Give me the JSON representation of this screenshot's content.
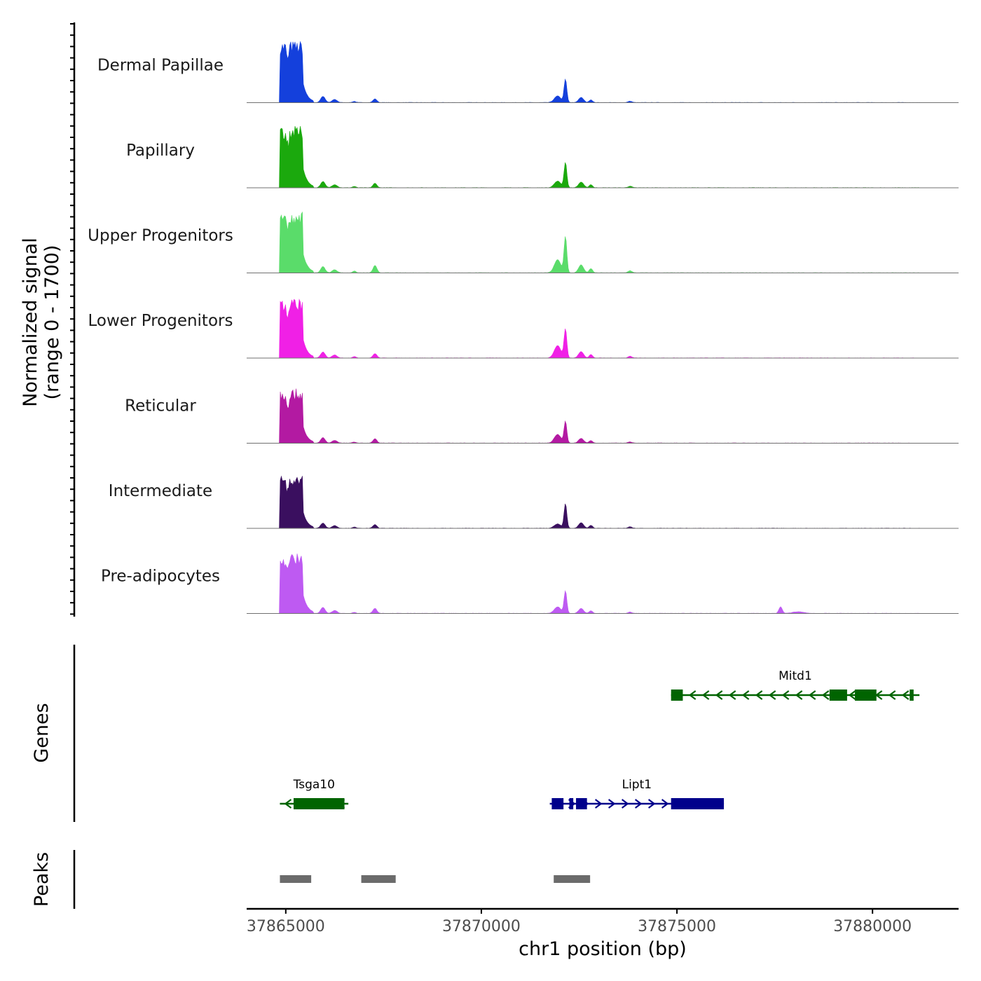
{
  "chart_data": {
    "type": "area",
    "title": "",
    "ylabel_line1": "Normalized signal",
    "ylabel_line2": "(range 0 - 1700)",
    "xlabel": "chr1 position (bp)",
    "xlim": [
      37864000,
      37882200
    ],
    "ylim": [
      0,
      1700
    ],
    "x_ticks": [
      37865000,
      37870000,
      37875000,
      37880000
    ],
    "x_tick_labels": [
      "37865000",
      "37870000",
      "37875000",
      "37880000"
    ],
    "genes_label": "Genes",
    "peaks_label": "Peaks",
    "colors": {
      "Dermal Papillae": "#1440DC",
      "Papillary": "#1BA90D",
      "Upper Progenitors": "#5ADC6A",
      "Lower Progenitors": "#F020E6",
      "Reticular": "#B31AA2",
      "Intermediate": "#3A0F5F",
      "Pre-adipocytes": "#BE5AF2",
      "gene_minus_strand": "#006400",
      "gene_plus_strand": "#00008B",
      "peak": "#6B6B6B"
    },
    "series": [
      {
        "name": "Dermal Papillae",
        "scale": 1.0,
        "peak_main": 1700,
        "peak_mid": 640,
        "peak_mid_side": 180,
        "peak_small": 100,
        "peak_late": 0
      },
      {
        "name": "Papillary",
        "scale": 1.0,
        "peak_main": 1700,
        "peak_mid": 700,
        "peak_mid_side": 180,
        "peak_small": 120,
        "peak_late": 0
      },
      {
        "name": "Upper Progenitors",
        "scale": 1.0,
        "peak_main": 1700,
        "peak_mid": 1000,
        "peak_mid_side": 360,
        "peak_small": 200,
        "peak_late": 0
      },
      {
        "name": "Lower Progenitors",
        "scale": 1.0,
        "peak_main": 1650,
        "peak_mid": 800,
        "peak_mid_side": 340,
        "peak_small": 120,
        "peak_late": 0
      },
      {
        "name": "Reticular",
        "scale": 1.0,
        "peak_main": 1500,
        "peak_mid": 600,
        "peak_mid_side": 240,
        "peak_small": 120,
        "peak_late": 0
      },
      {
        "name": "Intermediate",
        "scale": 1.0,
        "peak_main": 1450,
        "peak_mid": 680,
        "peak_mid_side": 120,
        "peak_small": 100,
        "peak_late": 0
      },
      {
        "name": "Pre-adipocytes",
        "scale": 1.0,
        "peak_main": 1650,
        "peak_mid": 620,
        "peak_mid_side": 180,
        "peak_small": 140,
        "peak_late": 180
      }
    ],
    "genes": [
      {
        "name": "Mitd1",
        "strand": "-",
        "start": 37874850,
        "end": 37881200,
        "row": 1,
        "exons": [
          [
            37874850,
            37875150
          ],
          [
            37878900,
            37879350
          ],
          [
            37879550,
            37880100
          ],
          [
            37880950,
            37881050
          ]
        ]
      },
      {
        "name": "Tsga10",
        "strand": "-",
        "start": 37864850,
        "end": 37866600,
        "row": 2,
        "exons": [
          [
            37865200,
            37866500
          ]
        ]
      },
      {
        "name": "Lipt1",
        "strand": "+",
        "start": 37871750,
        "end": 37876200,
        "row": 2,
        "exons": [
          [
            37871800,
            37872100
          ],
          [
            37872250,
            37872350
          ],
          [
            37872420,
            37872700
          ],
          [
            37874850,
            37876200
          ]
        ]
      }
    ],
    "peaks": [
      [
        37864850,
        37865650
      ],
      [
        37866930,
        37867810
      ],
      [
        37871850,
        37872780
      ]
    ]
  }
}
